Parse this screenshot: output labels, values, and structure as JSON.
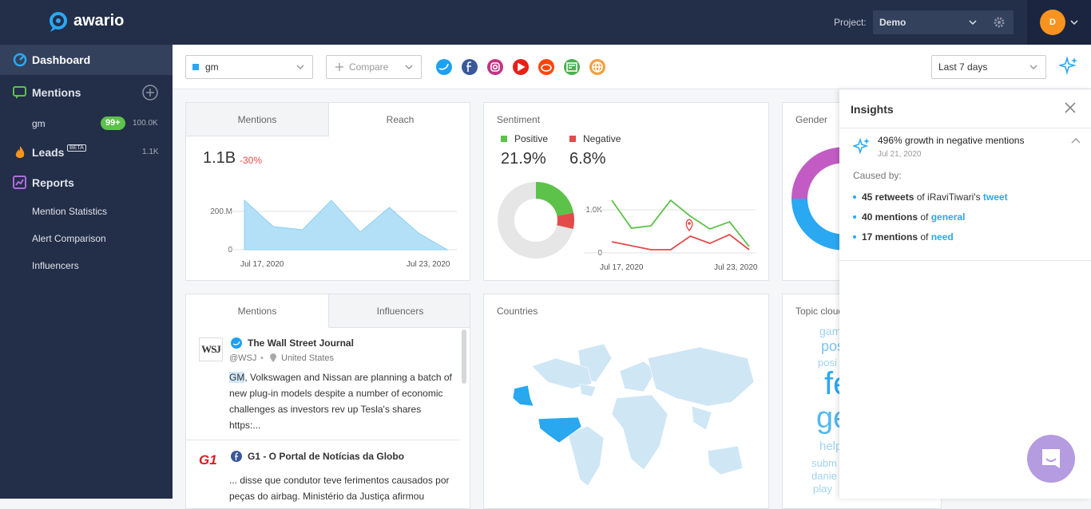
{
  "sidebar": {
    "brand": "awario",
    "nav": {
      "dashboard": "Dashboard",
      "mentions": "Mentions",
      "alert": {
        "name": "gm",
        "badge": "99+",
        "count": "100.0K"
      },
      "leads": {
        "name": "Leads",
        "badge": "BETA",
        "count": "1.1K"
      },
      "reports": "Reports",
      "report_items": [
        "Mention Statistics",
        "Alert Comparison",
        "Influencers"
      ]
    }
  },
  "topbar": {
    "project_label": "Project:",
    "project": "Demo",
    "avatar": "D"
  },
  "toolbar": {
    "alert": "gm",
    "compare": "Compare",
    "period": "Last 7 days"
  },
  "reach_card": {
    "tabs": [
      "Mentions",
      "Reach"
    ],
    "value": "1.1B",
    "change": "-30%",
    "chart": {
      "type": "area",
      "values": [
        258,
        121,
        104,
        258,
        92,
        221,
        88,
        0
      ],
      "color": "#b3e0f7",
      "ylim": [
        0,
        200
      ],
      "yticks": [
        0,
        {
          "value": 200,
          "label": "200.M"
        }
      ],
      "xtick_labels": [
        "Jul 17, 2020",
        "Jul 23, 2020"
      ],
      "grid": true
    }
  },
  "sentiment_card": {
    "title": "Sentiment",
    "donut": {
      "type": "pie",
      "series": [
        {
          "name": "Positive",
          "color": "#5cc24a",
          "value": 21.9,
          "value_label": "21.9%"
        },
        {
          "name": "Negative",
          "color": "#e34a4a",
          "value": 6.8,
          "value_label": "6.8%"
        }
      ]
    },
    "chart": {
      "type": "line",
      "series": [
        {
          "color": "#5cc24a",
          "values": [
            1222,
            574,
            630,
            1222,
            852,
            556,
            722,
            148
          ]
        },
        {
          "color": "#e34a4a",
          "values": [
            259,
            167,
            74,
            74,
            389,
            222,
            426,
            74
          ]
        }
      ],
      "ylim": [
        0,
        1000
      ],
      "yticks": [
        0,
        {
          "value": 1000,
          "label": "1.0K"
        }
      ],
      "xtick_labels": [
        "Jul 17, 2020",
        "Jul 23, 2020"
      ],
      "grid": true
    }
  },
  "gender_card": {
    "title": "Gender"
  },
  "feed_card": {
    "tabs": [
      "Mentions",
      "Influencers"
    ],
    "items": [
      {
        "logo": "WSJ",
        "name": "The Wall Street Journal",
        "handle": "@WSJ",
        "location": "United States",
        "highlight": "GM",
        "text": ", Volkswagen and Nissan are planning a batch of new plug-in models despite a number of economic challenges as investors rev up Tesla's shares https:..."
      },
      {
        "logo": "G1",
        "name": "G1 - O Portal de Notícias da Globo",
        "text": "... disse que condutor teve ferimentos causados por peças do airbag. Ministério da Justiça afirmou"
      }
    ]
  },
  "countries_card": {
    "title": "Countries"
  },
  "topic_card": {
    "title": "Topic cloud",
    "words": [
      "gam",
      "pos",
      "posi",
      "fe",
      "ge",
      "help",
      "subm",
      "danie",
      "play"
    ]
  },
  "insights": {
    "title": "Insights",
    "headline": "496% growth in negative mentions",
    "date": "Jul 21, 2020",
    "caused_by": "Caused by:",
    "causes": [
      {
        "bold": "45 retweets",
        "mid": " of iRaviTiwari's ",
        "link": "tweet"
      },
      {
        "bold": "40 mentions",
        "mid": " of ",
        "link": "general"
      },
      {
        "bold": "17 mentions",
        "mid": " of ",
        "link": "need"
      }
    ]
  }
}
